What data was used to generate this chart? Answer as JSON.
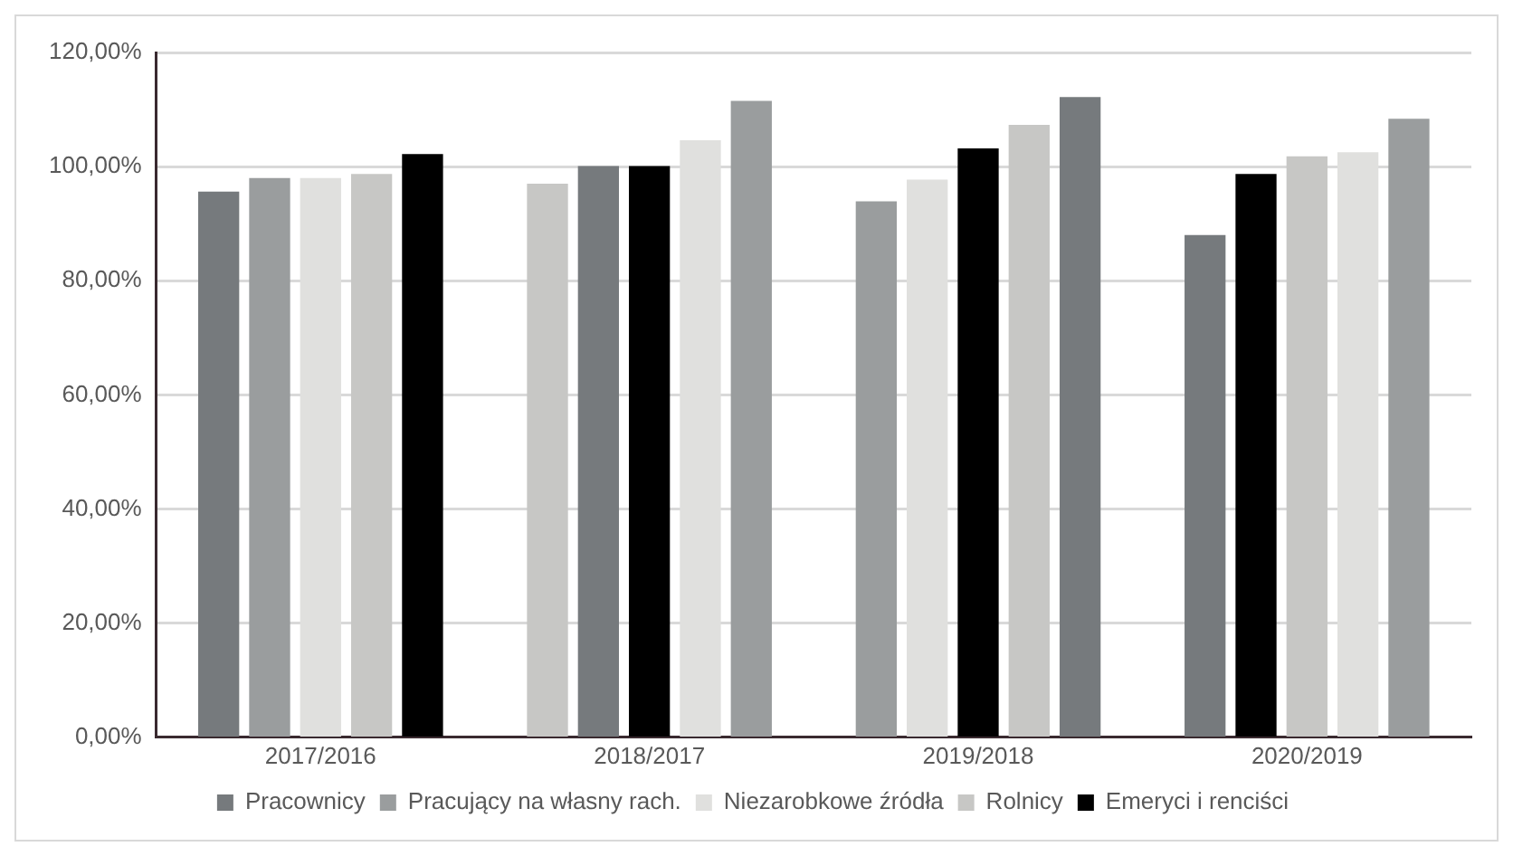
{
  "chart_data": {
    "type": "bar",
    "categories": [
      "2017/2016",
      "2018/2017",
      "2019/2018",
      "2020/2019"
    ],
    "series": [
      {
        "name": "Pracownicy",
        "color": "#767a7d",
        "values": [
          95.5,
          100,
          112.1,
          87.9
        ]
      },
      {
        "name": "Pracujący na własny rach.",
        "color": "#9a9d9e",
        "values": [
          97.9,
          111.4,
          93.8,
          108.3
        ]
      },
      {
        "name": "Niezarobkowe źródła",
        "color": "#e0e0de",
        "values": [
          97.9,
          104.5,
          97.6,
          102.4
        ]
      },
      {
        "name": "Rolnicy",
        "color": "#c7c7c5",
        "values": [
          98.6,
          96.9,
          107.2,
          101.7
        ]
      },
      {
        "name": "Emeryci i renciści",
        "color": "#000000",
        "values": [
          102.1,
          100,
          103.1,
          98.6
        ]
      }
    ],
    "ylim": [
      0,
      120
    ],
    "yticks": [
      {
        "value": 0,
        "label": "0,00%"
      },
      {
        "value": 20,
        "label": "20,00%"
      },
      {
        "value": 40,
        "label": "40,00%"
      },
      {
        "value": 60,
        "label": "60,00%"
      },
      {
        "value": 80,
        "label": "80,00%"
      },
      {
        "value": 100,
        "label": "100,00%"
      },
      {
        "value": 120,
        "label": "120,00%"
      }
    ],
    "grid": "y",
    "legend": "bottom"
  }
}
